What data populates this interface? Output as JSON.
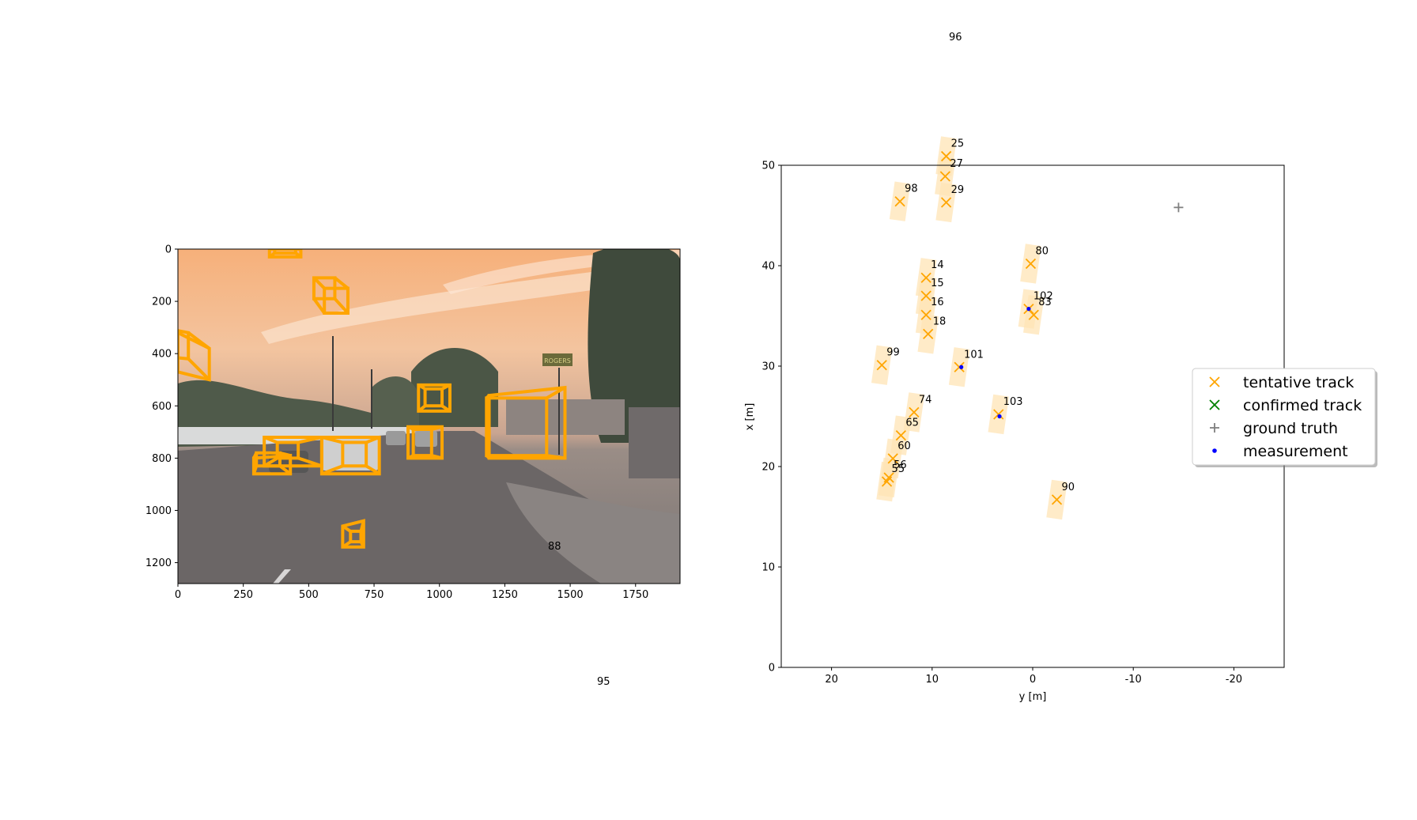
{
  "camera_panel": {
    "x_ticks": [
      "0",
      "250",
      "500",
      "750",
      "1000",
      "1250",
      "1500",
      "1750"
    ],
    "y_ticks": [
      "0",
      "200",
      "400",
      "600",
      "800",
      "1000",
      "1200"
    ],
    "xlim": [
      0,
      1920
    ],
    "ylim": [
      1280,
      0
    ],
    "scene_sign_text": "ROGERS",
    "box_color": "#FFA500",
    "boxes_3d": [
      {
        "front": [
          [
            350,
            0
          ],
          [
            470,
            0
          ],
          [
            470,
            30
          ],
          [
            350,
            30
          ]
        ],
        "back": [
          [
            370,
            -10
          ],
          [
            450,
            -10
          ],
          [
            450,
            15
          ],
          [
            370,
            15
          ]
        ]
      },
      {
        "front": [
          [
            520,
            110
          ],
          [
            600,
            110
          ],
          [
            600,
            190
          ],
          [
            520,
            190
          ]
        ],
        "back": [
          [
            560,
            150
          ],
          [
            650,
            150
          ],
          [
            650,
            245
          ],
          [
            560,
            245
          ]
        ]
      },
      {
        "front": [
          [
            0,
            320
          ],
          [
            120,
            380
          ],
          [
            120,
            500
          ],
          [
            0,
            470
          ]
        ],
        "back": [
          [
            -60,
            300
          ],
          [
            40,
            320
          ],
          [
            40,
            420
          ],
          [
            -60,
            410
          ]
        ]
      },
      {
        "front": [
          [
            920,
            520
          ],
          [
            1040,
            520
          ],
          [
            1040,
            620
          ],
          [
            920,
            620
          ]
        ],
        "back": [
          [
            945,
            535
          ],
          [
            1010,
            535
          ],
          [
            1010,
            600
          ],
          [
            945,
            600
          ]
        ]
      },
      {
        "front": [
          [
            1190,
            560
          ],
          [
            1480,
            530
          ],
          [
            1480,
            800
          ],
          [
            1190,
            800
          ]
        ],
        "back": [
          [
            1180,
            570
          ],
          [
            1410,
            570
          ],
          [
            1410,
            790
          ],
          [
            1180,
            790
          ]
        ]
      },
      {
        "front": [
          [
            880,
            680
          ],
          [
            1010,
            680
          ],
          [
            1010,
            800
          ],
          [
            880,
            800
          ]
        ],
        "back": [
          [
            900,
            690
          ],
          [
            970,
            690
          ],
          [
            970,
            790
          ],
          [
            900,
            790
          ]
        ]
      },
      {
        "front": [
          [
            330,
            720
          ],
          [
            550,
            720
          ],
          [
            550,
            830
          ],
          [
            330,
            830
          ]
        ],
        "back": [
          [
            380,
            740
          ],
          [
            460,
            740
          ],
          [
            460,
            800
          ],
          [
            380,
            800
          ]
        ]
      },
      {
        "front": [
          [
            550,
            720
          ],
          [
            770,
            720
          ],
          [
            770,
            860
          ],
          [
            550,
            860
          ]
        ],
        "back": [
          [
            630,
            740
          ],
          [
            720,
            740
          ],
          [
            720,
            830
          ],
          [
            630,
            830
          ]
        ]
      },
      {
        "front": [
          [
            290,
            800
          ],
          [
            430,
            790
          ],
          [
            430,
            860
          ],
          [
            290,
            860
          ]
        ],
        "back": [
          [
            300,
            780
          ],
          [
            390,
            780
          ],
          [
            390,
            830
          ],
          [
            300,
            830
          ]
        ]
      },
      {
        "front": [
          [
            630,
            1060
          ],
          [
            710,
            1040
          ],
          [
            710,
            1140
          ],
          [
            630,
            1140
          ]
        ],
        "back": [
          [
            660,
            1080
          ],
          [
            700,
            1080
          ],
          [
            700,
            1120
          ],
          [
            660,
            1120
          ]
        ]
      }
    ]
  },
  "stray_labels": [
    {
      "text": "96"
    },
    {
      "text": "95"
    },
    {
      "text": "88"
    }
  ],
  "chart_data": {
    "type": "scatter",
    "xlabel": "y [m]",
    "ylabel": "x [m]",
    "xlim": [
      25,
      -25
    ],
    "ylim": [
      0,
      50
    ],
    "x_ticks": [
      "20",
      "10",
      "0",
      "-10",
      "-20"
    ],
    "y_ticks": [
      "0",
      "10",
      "20",
      "30",
      "40",
      "50"
    ],
    "colors": {
      "tentative": "#FFA500",
      "confirmed": "#008000",
      "ground_truth": "#808080",
      "measurement": "#0000FF",
      "track_box": "#FFE4B5"
    },
    "tentative_tracks": [
      {
        "id": "25",
        "y": 8.6,
        "x": 50.9
      },
      {
        "id": "27",
        "y": 8.7,
        "x": 48.9
      },
      {
        "id": "29",
        "y": 8.6,
        "x": 46.3
      },
      {
        "id": "98",
        "y": 13.2,
        "x": 46.4
      },
      {
        "id": "14",
        "y": 10.6,
        "x": 38.8
      },
      {
        "id": "15",
        "y": 10.6,
        "x": 37.0
      },
      {
        "id": "16",
        "y": 10.6,
        "x": 35.1
      },
      {
        "id": "18",
        "y": 10.4,
        "x": 33.2
      },
      {
        "id": "80",
        "y": 0.2,
        "x": 40.2
      },
      {
        "id": "102",
        "y": 0.4,
        "x": 35.7
      },
      {
        "id": "83",
        "y": -0.1,
        "x": 35.1
      },
      {
        "id": "99",
        "y": 15.0,
        "x": 30.1
      },
      {
        "id": "101",
        "y": 7.3,
        "x": 29.9
      },
      {
        "id": "74",
        "y": 11.8,
        "x": 25.4
      },
      {
        "id": "103",
        "y": 3.4,
        "x": 25.2
      },
      {
        "id": "65",
        "y": 13.1,
        "x": 23.1
      },
      {
        "id": "60",
        "y": 13.9,
        "x": 20.8
      },
      {
        "id": "56",
        "y": 14.3,
        "x": 18.9
      },
      {
        "id": "55",
        "y": 14.5,
        "x": 18.5
      },
      {
        "id": "90",
        "y": -2.4,
        "x": 16.7
      }
    ],
    "confirmed_tracks": [],
    "ground_truth": [
      {
        "y": -14.5,
        "x": 45.8
      }
    ],
    "measurements": [
      {
        "y": 0.4,
        "x": 35.7
      },
      {
        "y": 7.1,
        "x": 29.9
      },
      {
        "y": 3.3,
        "x": 25.0
      }
    ],
    "legend": {
      "position": "right",
      "entries": [
        "tentative track",
        "confirmed track",
        "ground truth",
        "measurement"
      ]
    }
  }
}
